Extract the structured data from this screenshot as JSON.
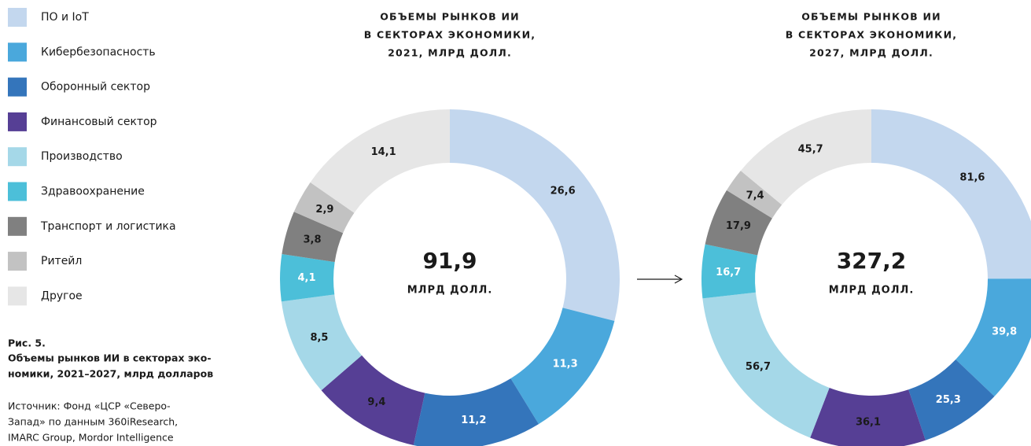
{
  "legend": {
    "categories": [
      "ПО и IoT",
      "Кибербезопасность",
      "Оборонный сектор",
      "Финансовый сектор",
      "Производство",
      "Здравоохранение",
      "Транспорт и логистика",
      "Ритейл",
      "Другое"
    ],
    "colors": [
      "#c3d7ee",
      "#4aa8dc",
      "#3475bb",
      "#563f95",
      "#a5d8e8",
      "#4cbfd9",
      "#808080",
      "#c2c2c2",
      "#e6e6e6"
    ]
  },
  "caption": {
    "figure": "Рис. 5.",
    "title": [
      "Объемы рынков ИИ в секторах эко-",
      "номики, 2021–2027, млрд долларов"
    ],
    "source": [
      "Источник: Фонд «ЦСР «Северо-",
      "Запад» по данным 360iResearch,",
      "IMARC Group, Mordor Intelligence"
    ]
  },
  "chart_data": [
    {
      "type": "pie",
      "title": [
        "ОБЪЕМЫ РЫНКОВ ИИ",
        "В СЕКТОРАХ ЭКОНОМИКИ,",
        "2021, МЛРД ДОЛЛ."
      ],
      "values": [
        26.6,
        11.3,
        11.2,
        9.4,
        8.5,
        4.1,
        3.8,
        2.9,
        14.1
      ],
      "value_labels": [
        "26,6",
        "11,3",
        "11,2",
        "9,4",
        "8,5",
        "4,1",
        "3,8",
        "2,9",
        "14,1"
      ],
      "total": 91.9,
      "total_label": "91,9",
      "unit": "МЛРД ДОЛЛ."
    },
    {
      "type": "pie",
      "title": [
        "ОБЪЕМЫ РЫНКОВ ИИ",
        "В СЕКТОРАХ ЭКОНОМИКИ,",
        "2027, МЛРД ДОЛЛ."
      ],
      "values": [
        81.6,
        39.8,
        25.3,
        36.1,
        56.7,
        16.7,
        17.9,
        7.4,
        45.7
      ],
      "value_labels": [
        "81,6",
        "39,8",
        "25,3",
        "36,1",
        "56,7",
        "16,7",
        "17,9",
        "7,4",
        "45,7"
      ],
      "total": 327.2,
      "total_label": "327,2",
      "unit": "МЛРД ДОЛЛ."
    }
  ]
}
